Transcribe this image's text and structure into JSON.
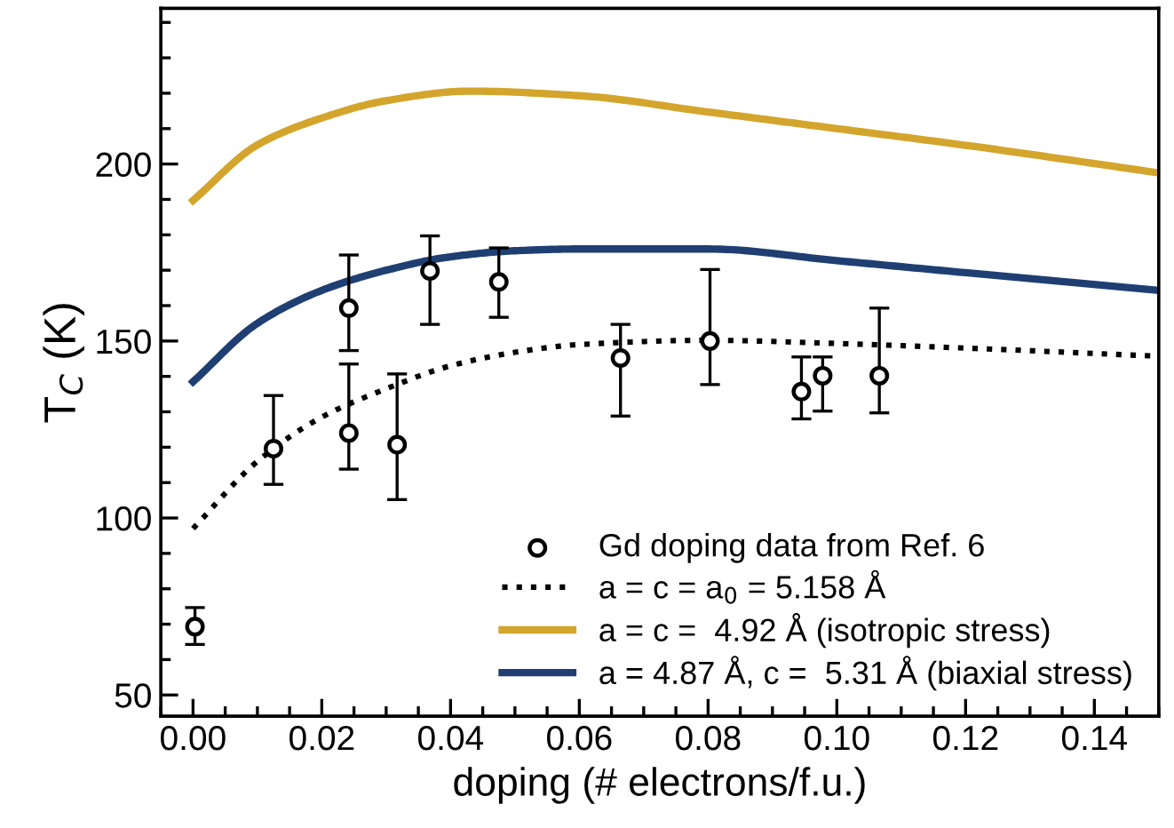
{
  "chart_data": {
    "type": "line",
    "xlabel": "doping (# electrons/f.u.)",
    "ylabel": "T$_{C}$ (K)",
    "xlim": [
      -0.005,
      0.15
    ],
    "ylim": [
      44,
      244
    ],
    "xticks": [
      {
        "value": 0,
        "label": "0.00"
      },
      0.02,
      0.04,
      0.06,
      0.08,
      {
        "value": 0.1,
        "label": "0.10"
      },
      0.12,
      0.14
    ],
    "yticks": [
      50,
      100,
      150,
      200
    ],
    "grid": false,
    "legend": "bottom right",
    "series": [
      {
        "name": "Gd doping data from Ref. 6",
        "type": "scatter",
        "marker": "circle",
        "color": "#000000",
        "x": [
          0.0003,
          0.0125,
          0.0242,
          0.0242,
          0.0317,
          0.0368,
          0.0475,
          0.0664,
          0.0803,
          0.0945,
          0.0978,
          0.1066
        ],
        "values": [
          69.3,
          119.6,
          159.3,
          124,
          120.7,
          169.8,
          166.7,
          145.2,
          150,
          135.7,
          140.2,
          140.2
        ],
        "errors": [
          [
            64.3,
            74.7
          ],
          [
            109.5,
            134.6
          ],
          [
            147.3,
            174.3
          ],
          [
            113.8,
            143.5
          ],
          [
            105.2,
            140.7
          ],
          [
            154.7,
            179.7
          ],
          [
            156.7,
            176.3
          ],
          [
            128.8,
            154.7
          ],
          [
            137.7,
            170.2
          ],
          [
            128,
            145.5
          ],
          [
            130.2,
            145.5
          ],
          [
            129.7,
            159.3
          ]
        ]
      },
      {
        "name": "a = c = a$_{0}$ = 5.158 Å",
        "line_style": "dotted",
        "color": "#000000",
        "x": [
          0,
          0.01,
          0.02,
          0.03,
          0.04,
          0.05,
          0.06,
          0.08,
          0.1,
          0.12,
          0.15
        ],
        "values": [
          97,
          116,
          128.5,
          136.5,
          143,
          146.8,
          149,
          150.2,
          149.3,
          148,
          145.7
        ]
      },
      {
        "name": "a = c =  4.92 Å (isotropic stress)",
        "line_style": "solid",
        "color": "#d4a52c",
        "x": [
          0,
          0.01,
          0.02,
          0.03,
          0.043,
          0.06,
          0.08,
          0.1,
          0.12,
          0.15
        ],
        "values": [
          189.7,
          205.4,
          213,
          217.9,
          220.6,
          219.3,
          214.7,
          210,
          205.3,
          197.5
        ]
      },
      {
        "name": "a = 4.87 Å, c =  5.31 Å (biaxial stress)",
        "line_style": "solid",
        "color": "#1f3f73",
        "x": [
          0,
          0.01,
          0.02,
          0.03,
          0.04,
          0.05,
          0.06,
          0.08,
          0.1,
          0.12,
          0.15
        ],
        "values": [
          138.5,
          155,
          164.3,
          170,
          173.8,
          175.5,
          176,
          176,
          172.7,
          169.3,
          164.3
        ]
      }
    ]
  }
}
